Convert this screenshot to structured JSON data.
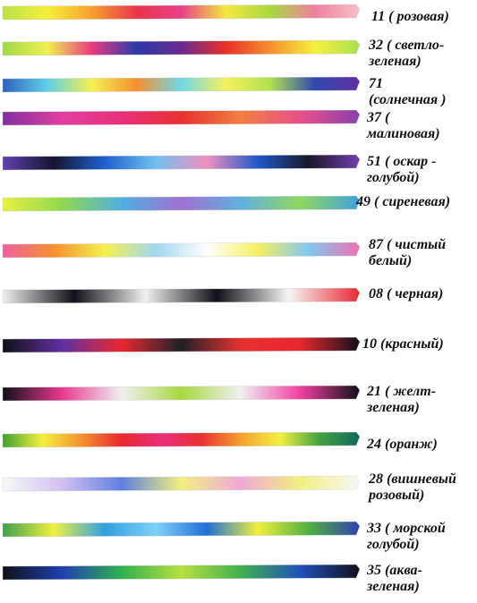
{
  "ribbons": [
    {
      "lines": [
        "11 ( розовая)"
      ]
    },
    {
      "lines": [
        "32 ( светло-",
        "зеленая)"
      ]
    },
    {
      "lines": [
        "71",
        "(солнечная )"
      ]
    },
    {
      "lines": [
        "37 (",
        "малиновая)"
      ]
    },
    {
      "lines": [
        "51 ( оскар -",
        "голубой)"
      ]
    },
    {
      "lines": [
        "49 ( сиреневая)"
      ]
    },
    {
      "lines": [
        "87 ( чистый",
        "белый)"
      ]
    },
    {
      "lines": [
        "08 ( черная)"
      ]
    },
    {
      "lines": [
        "10 (красный)"
      ]
    },
    {
      "lines": [
        "21 ( желт-",
        "зеленая)"
      ]
    },
    {
      "lines": [
        "24 (оранж)"
      ]
    },
    {
      "lines": [
        "28 (вишневый",
        "розовый)"
      ]
    },
    {
      "lines": [
        "33 ( морской",
        "голубой)"
      ]
    },
    {
      "lines": [
        "35 (аква-",
        "зеленая)"
      ]
    }
  ]
}
